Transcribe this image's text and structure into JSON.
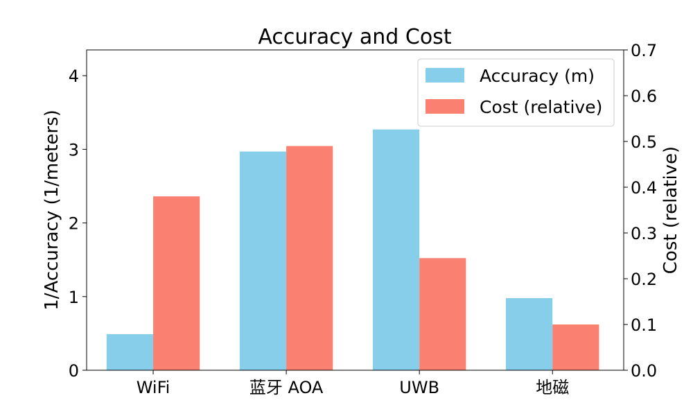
{
  "chart_data": {
    "type": "bar",
    "title": "Accuracy and Cost",
    "categories": [
      "WiFi",
      "蓝牙 AOA",
      "UWB",
      "地磁"
    ],
    "series": [
      {
        "name": "Accuracy (m)",
        "axis": "left",
        "color": "#87CEEB",
        "values": [
          0.49,
          2.97,
          3.27,
          0.98
        ]
      },
      {
        "name": "Cost (relative)",
        "axis": "right",
        "color": "#FA8072",
        "values": [
          0.38,
          0.49,
          0.245,
          0.1
        ]
      }
    ],
    "ylabel": "1/Accuracy (1/meters)",
    "ylabel_right": "Cost (relative)",
    "ylim": [
      0,
      4.35
    ],
    "ylim_right": [
      0,
      0.7
    ],
    "yticks": [
      "0",
      "1",
      "2",
      "3",
      "4"
    ],
    "yticks_right": [
      "0.0",
      "0.1",
      "0.2",
      "0.3",
      "0.4",
      "0.5",
      "0.6",
      "0.7"
    ],
    "legend_position": "top-right",
    "grid": false
  }
}
